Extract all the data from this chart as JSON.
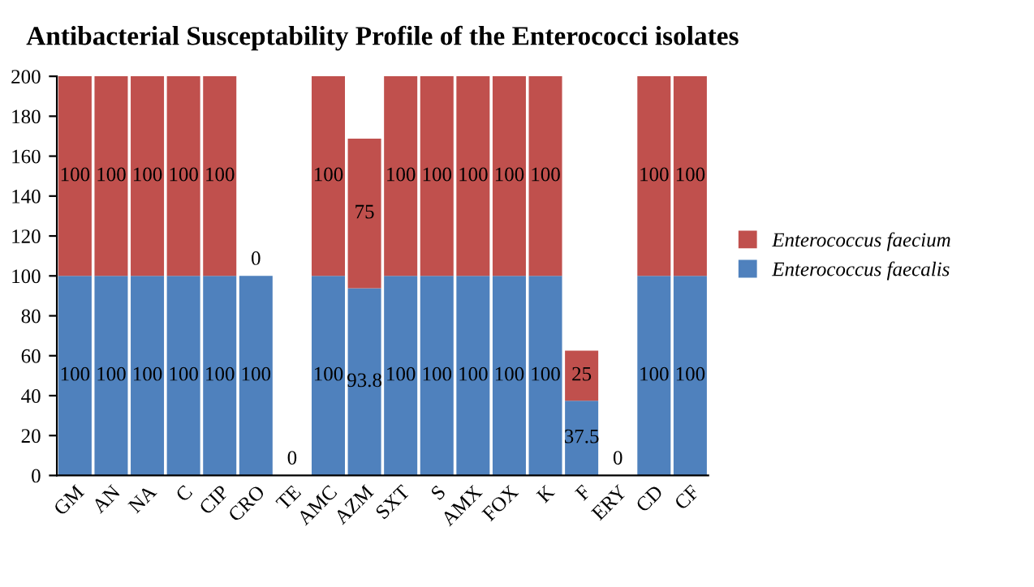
{
  "chart_data": {
    "type": "bar",
    "title": "Antibacterial Susceptability Profile of the Enterococci isolates",
    "categories": [
      "GM",
      "AN",
      "NA",
      "C",
      "CIP",
      "CRO",
      "TE",
      "AMC",
      "AZM",
      "SXT",
      "S",
      "AMX",
      "FOX",
      "K",
      "F",
      "ERY",
      "CD",
      "CF"
    ],
    "stacked": true,
    "series": [
      {
        "name": "Enterococcus faecalis",
        "color": "#4f81bd",
        "values": [
          100,
          100,
          100,
          100,
          100,
          100,
          0,
          100,
          93.8,
          100,
          100,
          100,
          100,
          100,
          37.5,
          0,
          100,
          100
        ],
        "value_labels": [
          "100",
          "100",
          "100",
          "100",
          "100",
          "100",
          "0",
          "100",
          "93.8",
          "100",
          "100",
          "100",
          "100",
          "100",
          "37.5",
          "0",
          "100",
          "100"
        ]
      },
      {
        "name": "Enterococcus faecium",
        "color": "#c0504d",
        "values": [
          100,
          100,
          100,
          100,
          100,
          0,
          0,
          100,
          75,
          100,
          100,
          100,
          100,
          100,
          25,
          0,
          100,
          100
        ],
        "value_labels": [
          "100",
          "100",
          "100",
          "100",
          "100",
          "0",
          null,
          "100",
          "75",
          "100",
          "100",
          "100",
          "100",
          "100",
          "25",
          null,
          "100",
          "100"
        ]
      }
    ],
    "ylim": [
      0,
      200
    ],
    "yticks": [
      0,
      20,
      40,
      60,
      80,
      100,
      120,
      140,
      160,
      180,
      200
    ],
    "grid": false,
    "legend": "right"
  }
}
